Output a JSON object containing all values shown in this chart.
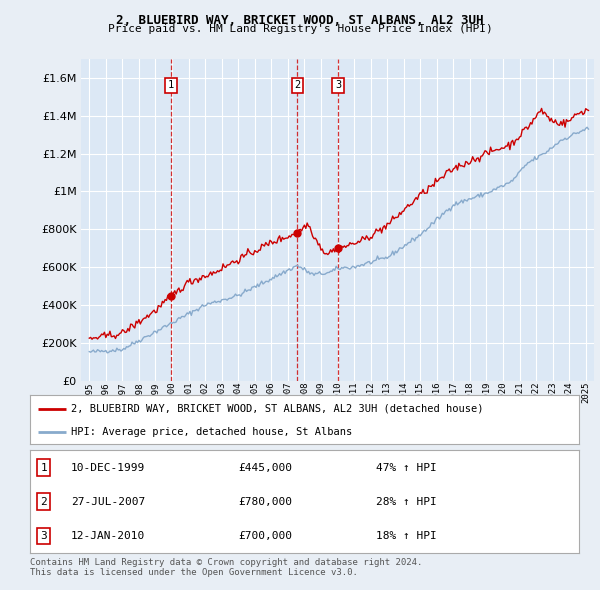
{
  "title": "2, BLUEBIRD WAY, BRICKET WOOD, ST ALBANS, AL2 3UH",
  "subtitle": "Price paid vs. HM Land Registry's House Price Index (HPI)",
  "bg_color": "#e8eef5",
  "plot_bg_color": "#dce8f5",
  "grid_color": "#ffffff",
  "sale_color": "#cc0000",
  "hpi_color": "#88aacc",
  "transactions": [
    {
      "label": "1",
      "date_x": 1999.94,
      "price": 445000
    },
    {
      "label": "2",
      "date_x": 2007.57,
      "price": 780000
    },
    {
      "label": "3",
      "date_x": 2010.04,
      "price": 700000
    }
  ],
  "legend_sale": "2, BLUEBIRD WAY, BRICKET WOOD, ST ALBANS, AL2 3UH (detached house)",
  "legend_hpi": "HPI: Average price, detached house, St Albans",
  "table_rows": [
    {
      "num": "1",
      "date": "10-DEC-1999",
      "price": "£445,000",
      "pct": "47% ↑ HPI"
    },
    {
      "num": "2",
      "date": "27-JUL-2007",
      "price": "£780,000",
      "pct": "28% ↑ HPI"
    },
    {
      "num": "3",
      "date": "12-JAN-2010",
      "price": "£700,000",
      "pct": "18% ↑ HPI"
    }
  ],
  "footer": "Contains HM Land Registry data © Crown copyright and database right 2024.\nThis data is licensed under the Open Government Licence v3.0.",
  "ylim": [
    0,
    1700000
  ],
  "xlim": [
    1994.5,
    2025.5
  ],
  "yticks": [
    0,
    200000,
    400000,
    600000,
    800000,
    1000000,
    1200000,
    1400000,
    1600000
  ]
}
